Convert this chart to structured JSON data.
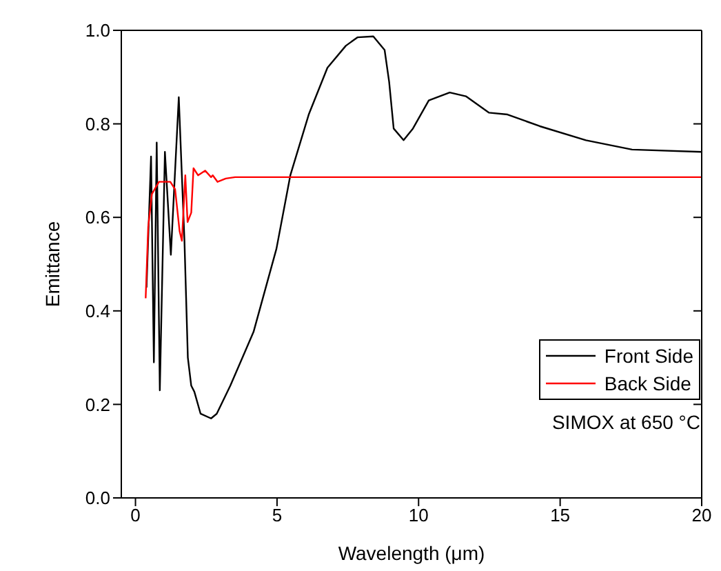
{
  "chart_data": {
    "type": "line",
    "xlabel": "Wavelength (μm)",
    "ylabel": "Emittance",
    "xlim": [
      -0.5,
      20
    ],
    "xticks": [
      0,
      5,
      10,
      15,
      20
    ],
    "ylim": [
      0,
      1
    ],
    "yticks": [
      {
        "value": 0,
        "label": "0.0"
      },
      {
        "value": 0.2,
        "label": "0.2"
      },
      {
        "value": 0.4,
        "label": "0.4"
      },
      {
        "value": 0.6,
        "label": "0.6"
      },
      {
        "value": 0.8,
        "label": "0.8"
      },
      {
        "value": 1,
        "label": "1.0"
      }
    ],
    "grid": false,
    "legend": "bottom right",
    "marker": "none",
    "line_style": "solid",
    "annotations": [
      "SIMOX at 650 °C"
    ],
    "series": [
      {
        "name": "Front Side",
        "color": "#000000",
        "x": [
          0.39,
          0.55,
          0.65,
          0.75,
          0.86,
          1.04,
          1.25,
          1.53,
          1.73,
          1.85,
          1.97,
          2.08,
          2.3,
          2.67,
          2.87,
          3.35,
          4.17,
          4.98,
          5.47,
          6.12,
          6.78,
          7.43,
          7.84,
          8.4,
          8.8,
          8.96,
          9.12,
          9.47,
          9.8,
          10.36,
          11.1,
          11.67,
          12.48,
          13.14,
          14.28,
          15.91,
          17.54,
          20
        ],
        "values": [
          0.45,
          0.73,
          0.29,
          0.76,
          0.23,
          0.74,
          0.52,
          0.857,
          0.55,
          0.3,
          0.24,
          0.227,
          0.18,
          0.17,
          0.18,
          0.24,
          0.355,
          0.533,
          0.69,
          0.82,
          0.92,
          0.967,
          0.985,
          0.987,
          0.958,
          0.89,
          0.79,
          0.765,
          0.79,
          0.85,
          0.867,
          0.859,
          0.824,
          0.82,
          0.795,
          0.765,
          0.745,
          0.74
        ]
      },
      {
        "name": "Back Side",
        "color": "#ff0000",
        "x": [
          0.36,
          0.45,
          0.58,
          0.83,
          1.23,
          1.4,
          1.56,
          1.64,
          1.76,
          1.84,
          1.97,
          2.05,
          2.21,
          2.46,
          2.67,
          2.73,
          2.9,
          3.19,
          3.52,
          20
        ],
        "values": [
          0.427,
          0.58,
          0.65,
          0.676,
          0.676,
          0.66,
          0.57,
          0.55,
          0.69,
          0.59,
          0.61,
          0.705,
          0.69,
          0.7,
          0.686,
          0.69,
          0.676,
          0.683,
          0.686,
          0.686
        ]
      }
    ]
  }
}
